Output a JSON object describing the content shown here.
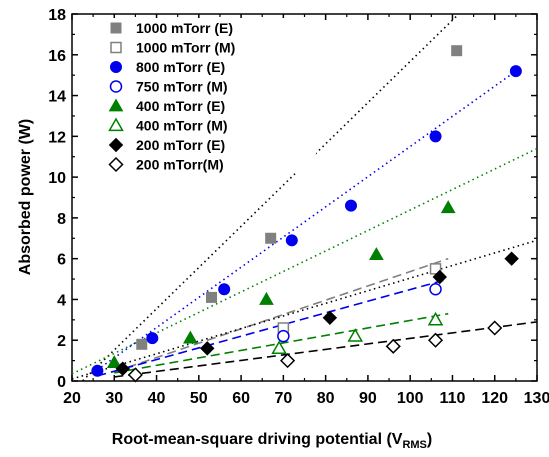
{
  "chart_data": {
    "type": "scatter",
    "xlabel": "Root-mean-square driving potential (V",
    "xlabel_sub": "RMS",
    "xlabel_end": ")",
    "ylabel": "Absorbed power (W)",
    "xlim": [
      20,
      130
    ],
    "ylim": [
      0,
      18
    ],
    "xticks": [
      "20",
      "30",
      "40",
      "50",
      "60",
      "70",
      "80",
      "90",
      "100",
      "110",
      "120",
      "130"
    ],
    "yticks": [
      "0",
      "2",
      "4",
      "6",
      "8",
      "10",
      "12",
      "14",
      "16",
      "18"
    ],
    "legend_position": "top-left",
    "series": [
      {
        "name": "1000 mTorr (E)",
        "marker": "square",
        "filled": true,
        "color": "#808080",
        "x": [
          36.5,
          53,
          67,
          111
        ],
        "y": [
          1.8,
          4.1,
          7.0,
          16.2
        ],
        "fit": {
          "style": "dotted",
          "color": "#000000",
          "x": [
            20,
            111
          ],
          "y": [
            -0.5,
            17.9
          ]
        }
      },
      {
        "name": "1000 mTorr (M)",
        "marker": "square",
        "filled": false,
        "color": "#808080",
        "x": [
          70,
          106
        ],
        "y": [
          2.6,
          5.5
        ],
        "fit": {
          "style": "dashed",
          "color": "#808080",
          "x": [
            30,
            109
          ],
          "y": [
            0.45,
            6.0
          ]
        }
      },
      {
        "name": "800 mTorr (E)",
        "marker": "circle",
        "filled": true,
        "color": "#0000ee",
        "x": [
          26,
          39,
          56,
          72,
          86,
          106,
          125
        ],
        "y": [
          0.5,
          2.1,
          4.5,
          6.9,
          8.6,
          12.0,
          15.2
        ],
        "fit": {
          "style": "dotted",
          "color": "#0000ee",
          "x": [
            25,
            125
          ],
          "y": [
            0.4,
            15.2
          ]
        }
      },
      {
        "name": "750 mTorr (M)",
        "marker": "circle",
        "filled": false,
        "color": "#0000ee",
        "x": [
          70,
          106
        ],
        "y": [
          2.2,
          4.5
        ],
        "fit": {
          "style": "dashed",
          "color": "#0000ee",
          "x": [
            26,
            109
          ],
          "y": [
            0.25,
            5.0
          ]
        }
      },
      {
        "name": "400 mTorr (E)",
        "marker": "triangle",
        "filled": true,
        "color": "#008000",
        "x": [
          30,
          48,
          66,
          92,
          109
        ],
        "y": [
          0.9,
          2.1,
          4.0,
          6.2,
          8.5
        ],
        "fit": {
          "style": "dotted",
          "color": "#008000",
          "x": [
            20,
            130
          ],
          "y": [
            0.35,
            11.4
          ]
        }
      },
      {
        "name": "400 mTorr (M)",
        "marker": "triangle",
        "filled": false,
        "color": "#008000",
        "x": [
          69,
          87,
          106
        ],
        "y": [
          1.6,
          2.2,
          3.0
        ],
        "fit": {
          "style": "dashed",
          "color": "#008000",
          "x": [
            30,
            109
          ],
          "y": [
            0.4,
            3.3
          ]
        }
      },
      {
        "name": "200 mTorr (E)",
        "marker": "diamond",
        "filled": true,
        "color": "#000000",
        "x": [
          32,
          52,
          81,
          107,
          124
        ],
        "y": [
          0.6,
          1.6,
          3.1,
          5.1,
          6.0
        ],
        "fit": {
          "style": "dotted",
          "color": "#000000",
          "x": [
            20,
            130
          ],
          "y": [
            0.1,
            6.9
          ]
        }
      },
      {
        "name": "200 mTorr(M)",
        "marker": "diamond",
        "filled": false,
        "color": "#000000",
        "x": [
          35,
          71,
          96,
          106,
          120
        ],
        "y": [
          0.3,
          1.0,
          1.7,
          2.0,
          2.6
        ],
        "fit": {
          "style": "dashed",
          "color": "#000000",
          "x": [
            30,
            130
          ],
          "y": [
            0.2,
            2.9
          ]
        }
      }
    ]
  }
}
